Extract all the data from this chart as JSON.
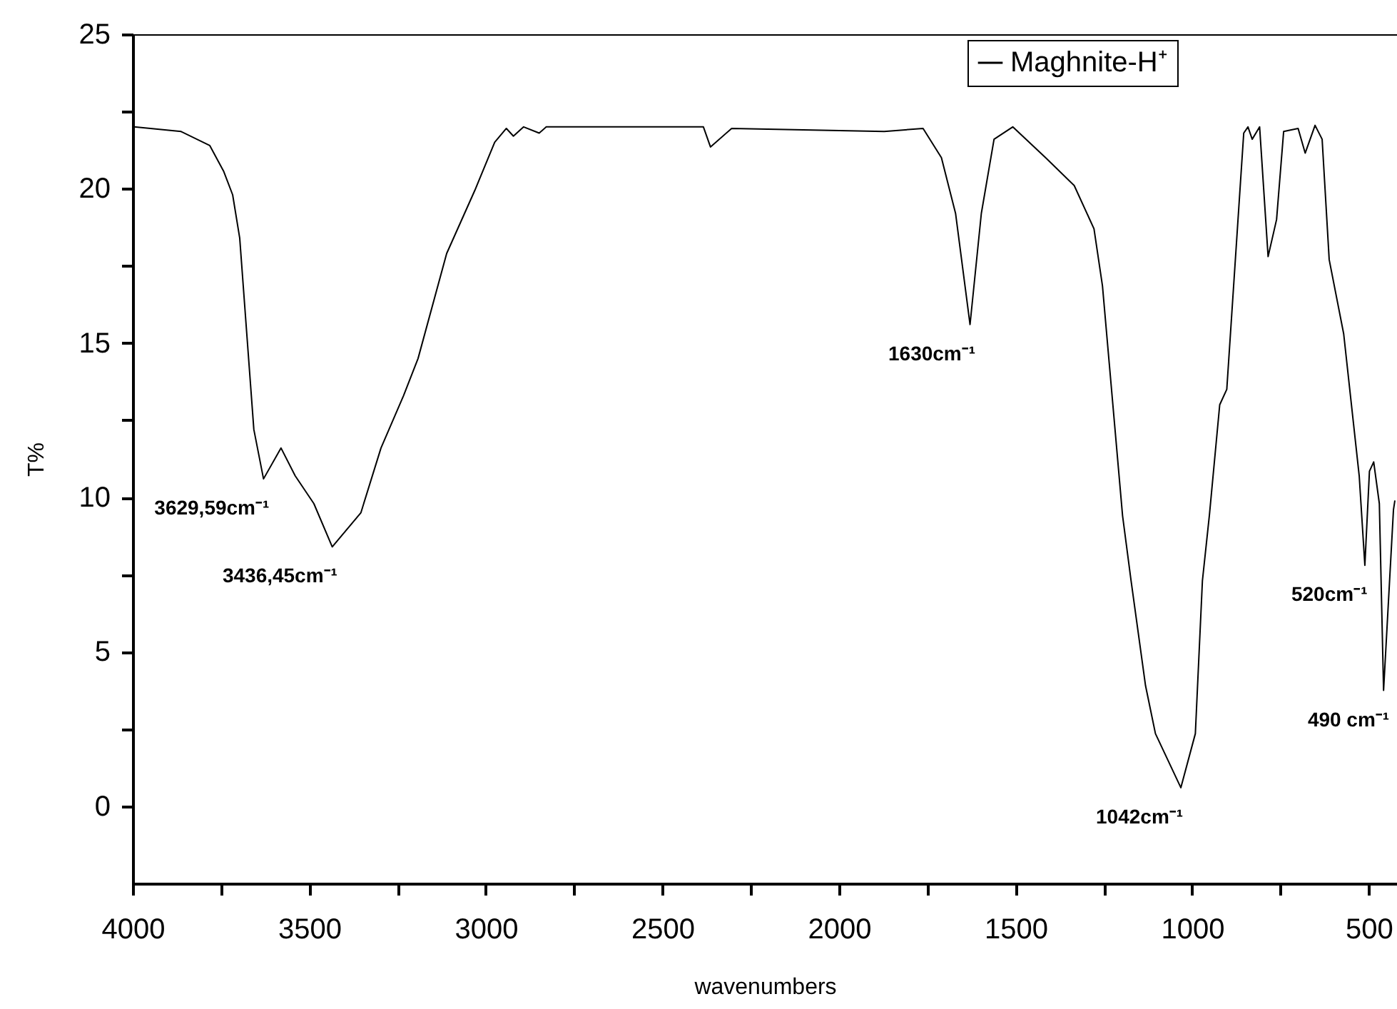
{
  "chart_data": {
    "type": "line",
    "xlabel": "wavenumbers",
    "ylabel": "T%",
    "xlim": [
      4000,
      420
    ],
    "ylim": [
      -2.5,
      25
    ],
    "xticks": [
      4000,
      {
        "value": 3750,
        "label": null
      },
      3500,
      {
        "value": 3250,
        "label": null
      },
      3000,
      {
        "value": 2750,
        "label": null
      },
      2500,
      {
        "value": 2250,
        "label": null
      },
      2000,
      {
        "value": 1750,
        "label": null
      },
      1500,
      {
        "value": 1250,
        "label": null
      },
      1000,
      {
        "value": 750,
        "label": null
      },
      500
    ],
    "yticks": [
      0,
      {
        "value": 2.5,
        "label": null
      },
      5,
      {
        "value": 7.5,
        "label": null
      },
      10,
      {
        "value": 12.5,
        "label": null
      },
      15,
      {
        "value": 17.5,
        "label": null
      },
      20,
      {
        "value": 22.5,
        "label": null
      },
      25
    ],
    "legend": "top right",
    "grid": false,
    "series": [
      {
        "name": "Maghnite-H⁺",
        "color": "#000000",
        "x": [
          3996,
          3863,
          3782,
          3742,
          3717,
          3697,
          3677,
          3657,
          3629.6,
          3580,
          3540,
          3487,
          3435,
          3354,
          3297,
          3233,
          3192,
          3111,
          3031,
          2975,
          2942,
          2922,
          2893,
          2849,
          2829,
          2384,
          2364,
          2304,
          1872,
          1762,
          1710,
          1670,
          1629,
          1597,
          1561,
          1508,
          1415,
          1334,
          1278,
          1254,
          1197,
          1173,
          1132,
          1104,
          1032,
          991,
          971,
          951,
          922,
          902,
          854,
          842,
          830,
          809,
          785,
          761,
          741,
          700,
          680,
          652,
          632,
          612,
          571,
          527,
          511,
          498,
          486,
          470,
          458,
          430,
          426
        ],
        "values": [
          22.0,
          21.85,
          21.4,
          20.55,
          19.8,
          18.4,
          15.3,
          12.2,
          10.6,
          11.6,
          10.7,
          9.8,
          8.4,
          9.5,
          11.6,
          13.3,
          14.5,
          17.9,
          19.95,
          21.5,
          21.95,
          21.7,
          22.0,
          21.8,
          22.0,
          22.0,
          21.35,
          21.95,
          21.85,
          21.95,
          21.0,
          19.2,
          15.6,
          19.2,
          21.6,
          22.0,
          21.0,
          20.1,
          18.7,
          16.85,
          9.4,
          7.3,
          3.9,
          2.35,
          0.6,
          2.35,
          7.3,
          9.45,
          13.0,
          13.5,
          21.8,
          22.0,
          21.6,
          22.0,
          17.8,
          19.0,
          21.85,
          21.95,
          21.15,
          22.05,
          21.6,
          17.7,
          15.3,
          10.7,
          7.8,
          10.85,
          11.15,
          9.8,
          3.75,
          9.6,
          9.9
        ]
      }
    ],
    "annotations": [
      {
        "text": "3629,59cm⁻¹",
        "x": 3629.59,
        "y": 10.6
      },
      {
        "text": "3436,45cm⁻¹",
        "x": 3436.45,
        "y": 8.4
      },
      {
        "text": "1630cm⁻¹",
        "x": 1630,
        "y": 15.6
      },
      {
        "text": "1042cm⁻¹",
        "x": 1042,
        "y": 0.6
      },
      {
        "text": "520cm⁻¹",
        "x": 520,
        "y": 7.8
      },
      {
        "text": "490 cm⁻¹",
        "x": 458,
        "y": 3.75
      }
    ]
  }
}
